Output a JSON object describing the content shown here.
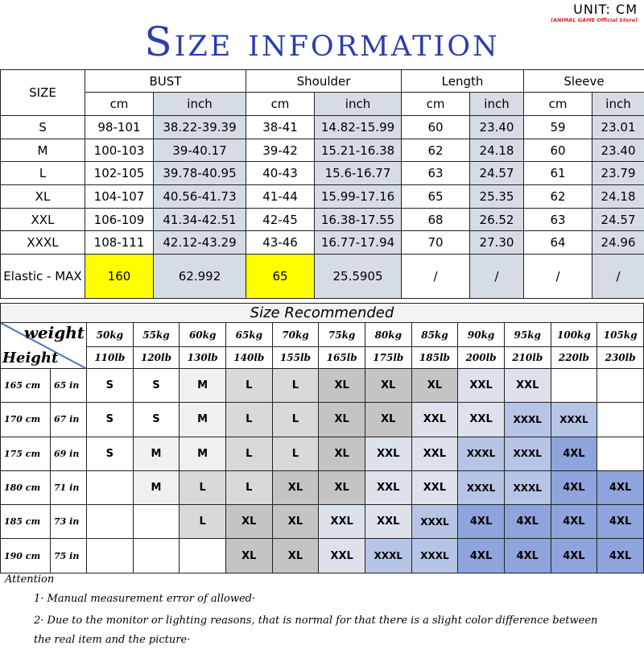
{
  "header": {
    "title": "Size information",
    "unit": "UNIT: CM",
    "store": "(ANIMAL GAME Official Store)"
  },
  "size_table": {
    "size_label": "SIZE",
    "groups": [
      "BUST",
      "Shoulder",
      "Length",
      "Sleeve"
    ],
    "units": [
      "cm",
      "inch",
      "cm",
      "inch",
      "cm",
      "inch",
      "cm",
      "inch"
    ],
    "rows": [
      [
        "S",
        "98-101",
        "38.22-39.39",
        "38-41",
        "14.82-15.99",
        "60",
        "23.40",
        "59",
        "23.01"
      ],
      [
        "M",
        "100-103",
        "39-40.17",
        "39-42",
        "15.21-16.38",
        "62",
        "24.18",
        "60",
        "23.40"
      ],
      [
        "L",
        "102-105",
        "39.78-40.95",
        "40-43",
        "15.6-16.77",
        "63",
        "24.57",
        "61",
        "23.79"
      ],
      [
        "XL",
        "104-107",
        "40.56-41.73",
        "41-44",
        "15.99-17.16",
        "65",
        "25.35",
        "62",
        "24.18"
      ],
      [
        "XXL",
        "106-109",
        "41.34-42.51",
        "42-45",
        "16.38-17.55",
        "68",
        "26.52",
        "63",
        "24.57"
      ],
      [
        "XXXL",
        "108-111",
        "42.12-43.29",
        "43-46",
        "16.77-17.94",
        "70",
        "27.30",
        "64",
        "24.96"
      ]
    ],
    "elastic": [
      "Elastic - MAX",
      "160",
      "62.992",
      "65",
      "25.5905",
      "/",
      "/",
      "/",
      "/"
    ],
    "highlight_color": "#ffff00",
    "inch_color": "#d6dce4"
  },
  "recommend": {
    "title": "Size Recommended",
    "weight_label": "weight",
    "height_label": "Height",
    "kg": [
      "50kg",
      "55kg",
      "60kg",
      "65kg",
      "70kg",
      "75kg",
      "80kg",
      "85kg",
      "90kg",
      "95kg",
      "100kg",
      "105kg"
    ],
    "lb": [
      "110lb",
      "120lb",
      "130lb",
      "140lb",
      "155lb",
      "165lb",
      "175lb",
      "185lb",
      "200lb",
      "210lb",
      "220lb",
      "230lb"
    ],
    "rows": [
      {
        "cm": "165 cm",
        "in": "65 in",
        "sizes": [
          "S",
          "S",
          "M",
          "L",
          "L",
          "XL",
          "XL",
          "XL",
          "XXL",
          "XXL",
          "",
          ""
        ]
      },
      {
        "cm": "170 cm",
        "in": "67 in",
        "sizes": [
          "S",
          "S",
          "M",
          "L",
          "L",
          "XL",
          "XL",
          "XXL",
          "XXL",
          "XXXL",
          "XXXL",
          ""
        ]
      },
      {
        "cm": "175 cm",
        "in": "69 in",
        "sizes": [
          "S",
          "M",
          "M",
          "L",
          "L",
          "XL",
          "XXL",
          "XXL",
          "XXXL",
          "XXXL",
          "4XL",
          ""
        ]
      },
      {
        "cm": "180 cm",
        "in": "71 in",
        "sizes": [
          "",
          "M",
          "L",
          "L",
          "XL",
          "XL",
          "XXL",
          "XXL",
          "XXXL",
          "XXXL",
          "4XL",
          "4XL"
        ]
      },
      {
        "cm": "185 cm",
        "in": "73 in",
        "sizes": [
          "",
          "",
          "L",
          "XL",
          "XL",
          "XXL",
          "XXL",
          "XXXL",
          "4XL",
          "4XL",
          "4XL",
          "4XL"
        ]
      },
      {
        "cm": "190 cm",
        "in": "75 in",
        "sizes": [
          "",
          "",
          "",
          "XL",
          "XL",
          "XXL",
          "XXXL",
          "XXXL",
          "4XL",
          "4XL",
          "4XL",
          "4XL"
        ]
      }
    ],
    "colors": {
      "S": "#ffffff",
      "M": "#f0f0f0",
      "L": "#d9d9d9",
      "XL": "#c4c4c4",
      "XXL": "#dde2ea",
      "XXXL": "#b6c4e6",
      "4XL": "#8fa4dc"
    }
  },
  "attention": {
    "title": "Attention",
    "lines": [
      "1· Manual measurement error of allowed·",
      "2·  Due to the monitor or lighting reasons, that is normal for that there is a slight color difference between the real item and the picture·"
    ]
  }
}
